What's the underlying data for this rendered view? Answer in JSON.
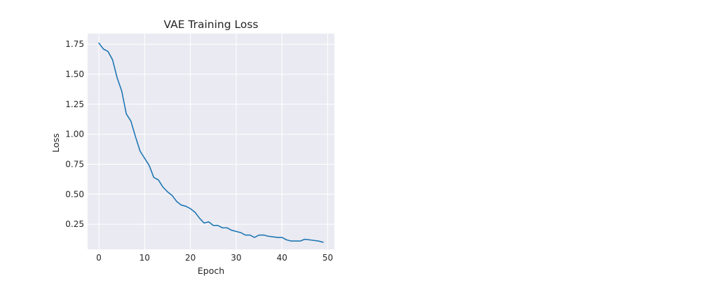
{
  "chart_data": {
    "type": "line",
    "title": "VAE Training Loss",
    "xlabel": "Epoch",
    "ylabel": "Loss",
    "xlim": [
      -2.45,
      51.45
    ],
    "ylim": [
      0.0405,
      1.8385
    ],
    "xticks": [
      0,
      10,
      20,
      30,
      40,
      50
    ],
    "yticks": [
      0.25,
      0.5,
      0.75,
      1.0,
      1.25,
      1.5,
      1.75
    ],
    "ytick_labels": [
      "0.25",
      "0.50",
      "0.75",
      "1.00",
      "1.25",
      "1.50",
      "1.75"
    ],
    "grid": true,
    "colors": {
      "plot_background": "#eaeaf2",
      "grid": "#ffffff",
      "line": "#1f77b4",
      "text": "#262626"
    },
    "series": [
      {
        "x": [
          0,
          1,
          2,
          3,
          4,
          5,
          6,
          7,
          8,
          9,
          10,
          11,
          12,
          13,
          14,
          15,
          16,
          17,
          18,
          19,
          20,
          21,
          22,
          23,
          24,
          25,
          26,
          27,
          28,
          29,
          30,
          31,
          32,
          33,
          34,
          35,
          36,
          37,
          38,
          39,
          40,
          41,
          42,
          43,
          44,
          45,
          46,
          47,
          48,
          49
        ],
        "values": [
          1.76,
          1.71,
          1.69,
          1.62,
          1.47,
          1.36,
          1.17,
          1.11,
          0.98,
          0.86,
          0.8,
          0.74,
          0.64,
          0.62,
          0.56,
          0.52,
          0.49,
          0.44,
          0.41,
          0.4,
          0.38,
          0.35,
          0.3,
          0.26,
          0.27,
          0.24,
          0.24,
          0.22,
          0.22,
          0.2,
          0.19,
          0.18,
          0.16,
          0.16,
          0.14,
          0.16,
          0.16,
          0.15,
          0.145,
          0.14,
          0.14,
          0.12,
          0.11,
          0.11,
          0.11,
          0.125,
          0.12,
          0.115,
          0.11,
          0.1
        ]
      }
    ]
  }
}
